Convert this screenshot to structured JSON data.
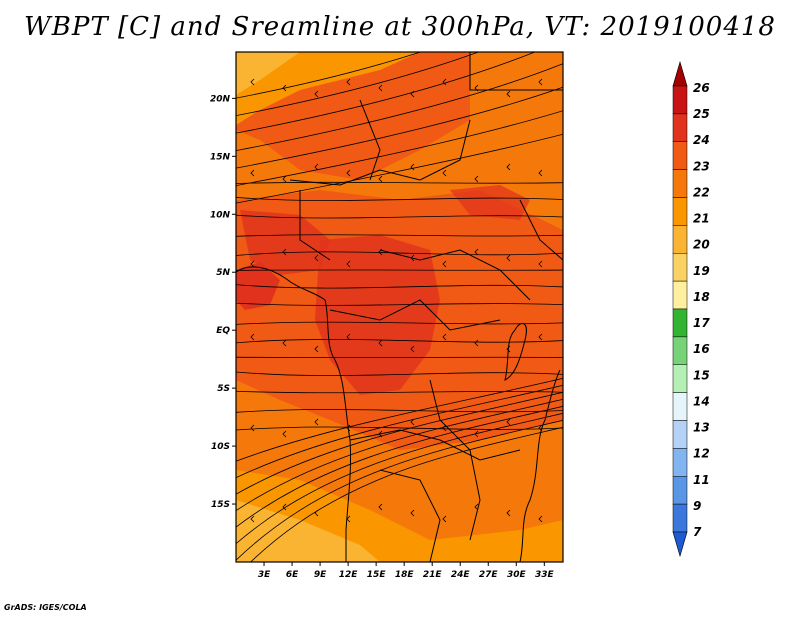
{
  "title": "WBPT [C] and Sreamline at 300hPa, VT: 2019100418",
  "credit": "GrADS: IGES/COLA",
  "map": {
    "lon_range": [
      0,
      35
    ],
    "lat_range": [
      -20,
      24
    ],
    "lon_ticks": [
      {
        "value": 3,
        "label": "3E"
      },
      {
        "value": 6,
        "label": "6E"
      },
      {
        "value": 9,
        "label": "9E"
      },
      {
        "value": 12,
        "label": "12E"
      },
      {
        "value": 15,
        "label": "15E"
      },
      {
        "value": 18,
        "label": "18E"
      },
      {
        "value": 21,
        "label": "21E"
      },
      {
        "value": 24,
        "label": "24E"
      },
      {
        "value": 27,
        "label": "27E"
      },
      {
        "value": 30,
        "label": "30E"
      },
      {
        "value": 33,
        "label": "33E"
      }
    ],
    "lat_ticks": [
      {
        "value": 20,
        "label": "20N"
      },
      {
        "value": 15,
        "label": "15N"
      },
      {
        "value": 10,
        "label": "10N"
      },
      {
        "value": 5,
        "label": "5N"
      },
      {
        "value": 0,
        "label": "EQ"
      },
      {
        "value": -5,
        "label": "5S"
      },
      {
        "value": -10,
        "label": "10S"
      },
      {
        "value": -15,
        "label": "15S"
      }
    ]
  },
  "colorbar": {
    "levels": [
      {
        "label": "26",
        "color": "#a50000"
      },
      {
        "label": "25",
        "color": "#c81414"
      },
      {
        "label": "24",
        "color": "#e1321e"
      },
      {
        "label": "23",
        "color": "#f05a14"
      },
      {
        "label": "22",
        "color": "#f5780a"
      },
      {
        "label": "21",
        "color": "#fa9600"
      },
      {
        "label": "20",
        "color": "#fab432"
      },
      {
        "label": "19",
        "color": "#fad264"
      },
      {
        "label": "18",
        "color": "#fff0a0"
      },
      {
        "label": "17",
        "color": "#32b432"
      },
      {
        "label": "16",
        "color": "#78d278"
      },
      {
        "label": "15",
        "color": "#b4f0b4"
      },
      {
        "label": "14",
        "color": "#e6f5fa"
      },
      {
        "label": "13",
        "color": "#b4d2f5"
      },
      {
        "label": "12",
        "color": "#82b4f0"
      },
      {
        "label": "11",
        "color": "#5a96e6"
      },
      {
        "label": "9",
        "color": "#3c78dc"
      },
      {
        "label": "7",
        "color": "#1e5ad2"
      }
    ],
    "bottom_arrow_color": "#1e5ad2"
  }
}
